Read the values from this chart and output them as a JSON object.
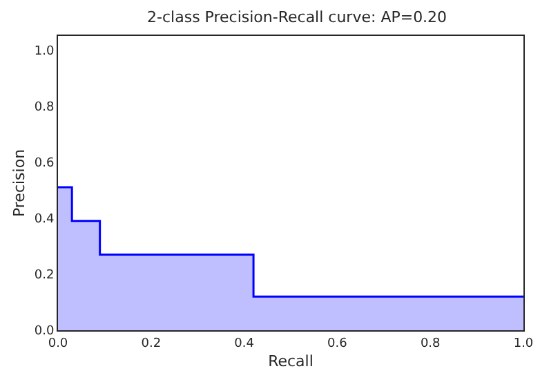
{
  "chart_data": {
    "type": "area",
    "title": "2-class Precision-Recall curve: AP=0.20",
    "xlabel": "Recall",
    "ylabel": "Precision",
    "x": [
      0,
      0.03,
      0.03,
      0.09,
      0.09,
      0.42,
      0.42,
      1.0
    ],
    "series": [
      {
        "color": "#0000ff",
        "values": [
          0.51,
          0.51,
          0.39,
          0.39,
          0.27,
          0.27,
          0.12,
          0.12
        ]
      }
    ],
    "xlim": [
      0,
      1
    ],
    "ylim": [
      0,
      1.05
    ],
    "xticks": [
      {
        "value": 0,
        "label": "0.0"
      },
      {
        "value": 0.2,
        "label": "0.2"
      },
      {
        "value": 0.4,
        "label": "0.4"
      },
      {
        "value": 0.6,
        "label": "0.6"
      },
      {
        "value": 0.8,
        "label": "0.8"
      },
      {
        "value": 1,
        "label": "1.0"
      }
    ],
    "yticks": [
      {
        "value": 0,
        "label": "0.0"
      },
      {
        "value": 0.2,
        "label": "0.2"
      },
      {
        "value": 0.4,
        "label": "0.4"
      },
      {
        "value": 0.6,
        "label": "0.6"
      },
      {
        "value": 0.8,
        "label": "0.8"
      },
      {
        "value": 1,
        "label": "1.0"
      }
    ],
    "grid": false
  }
}
